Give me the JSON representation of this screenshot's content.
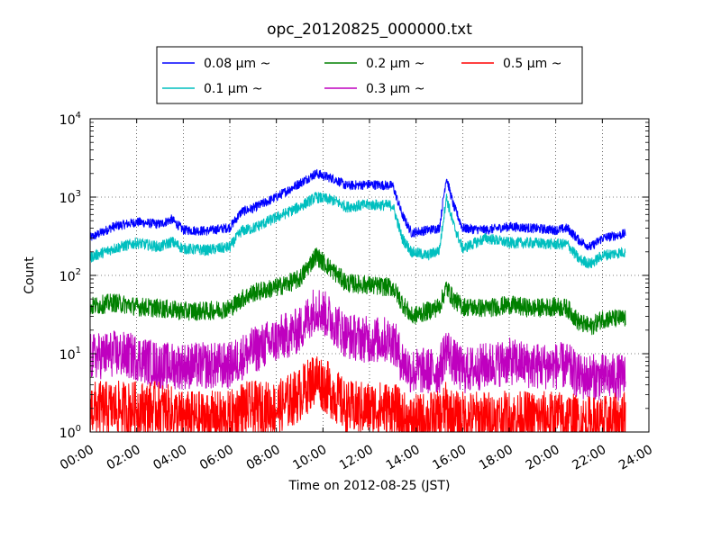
{
  "chart_data": {
    "type": "line",
    "title": "opc_20120825_000000.txt",
    "xlabel": "Time on 2012-08-25 (JST)",
    "ylabel": "Count",
    "x_tick_labels": [
      "00:00",
      "02:00",
      "04:00",
      "06:00",
      "08:00",
      "10:00",
      "12:00",
      "14:00",
      "16:00",
      "18:00",
      "20:00",
      "22:00",
      "24:00"
    ],
    "x_range_hours": [
      0,
      24
    ],
    "y_scale": "log",
    "y_range": [
      1,
      10000
    ],
    "y_tick_labels": [
      {
        "base": "10",
        "exp": "0"
      },
      {
        "base": "10",
        "exp": "1"
      },
      {
        "base": "10",
        "exp": "2"
      },
      {
        "base": "10",
        "exp": "3"
      },
      {
        "base": "10",
        "exp": "4"
      }
    ],
    "grid": "dotted",
    "legend_placement": "above plot, centered",
    "series": [
      {
        "name": "0.08 μm ~",
        "color": "#0000ff",
        "points": [
          [
            0,
            300
          ],
          [
            1,
            420
          ],
          [
            2,
            480
          ],
          [
            3,
            450
          ],
          [
            3.5,
            520
          ],
          [
            4,
            380
          ],
          [
            5,
            370
          ],
          [
            6,
            410
          ],
          [
            6.5,
            650
          ],
          [
            7,
            720
          ],
          [
            8,
            1000
          ],
          [
            9,
            1500
          ],
          [
            9.7,
            2000
          ],
          [
            10.5,
            1700
          ],
          [
            11,
            1400
          ],
          [
            12,
            1450
          ],
          [
            13,
            1400
          ],
          [
            13.4,
            600
          ],
          [
            13.8,
            350
          ],
          [
            14.5,
            380
          ],
          [
            15,
            400
          ],
          [
            15.3,
            1800
          ],
          [
            15.6,
            800
          ],
          [
            16,
            400
          ],
          [
            17,
            380
          ],
          [
            18,
            420
          ],
          [
            19,
            400
          ],
          [
            20,
            380
          ],
          [
            20.5,
            400
          ],
          [
            21,
            280
          ],
          [
            21.5,
            230
          ],
          [
            22,
            300
          ],
          [
            23,
            340
          ]
        ]
      },
      {
        "name": "0.1 μm ~",
        "color": "#00bfbf",
        "points": [
          [
            0,
            170
          ],
          [
            1,
            220
          ],
          [
            2,
            260
          ],
          [
            3,
            230
          ],
          [
            3.5,
            270
          ],
          [
            4,
            220
          ],
          [
            5,
            210
          ],
          [
            6,
            230
          ],
          [
            6.5,
            370
          ],
          [
            7,
            400
          ],
          [
            8,
            550
          ],
          [
            9,
            750
          ],
          [
            9.7,
            1000
          ],
          [
            10.5,
            900
          ],
          [
            11,
            750
          ],
          [
            12,
            800
          ],
          [
            13,
            780
          ],
          [
            13.4,
            300
          ],
          [
            13.8,
            200
          ],
          [
            14.5,
            180
          ],
          [
            15,
            210
          ],
          [
            15.3,
            1000
          ],
          [
            15.6,
            450
          ],
          [
            16,
            220
          ],
          [
            17,
            300
          ],
          [
            18,
            260
          ],
          [
            19,
            260
          ],
          [
            20,
            250
          ],
          [
            20.5,
            250
          ],
          [
            21,
            160
          ],
          [
            21.5,
            140
          ],
          [
            22,
            180
          ],
          [
            23,
            200
          ]
        ]
      },
      {
        "name": "0.2 μm ~",
        "color": "#008000",
        "points": [
          [
            0,
            40
          ],
          [
            1,
            45
          ],
          [
            2,
            40
          ],
          [
            3,
            38
          ],
          [
            4,
            35
          ],
          [
            5,
            35
          ],
          [
            6,
            38
          ],
          [
            6.5,
            50
          ],
          [
            7,
            60
          ],
          [
            8,
            70
          ],
          [
            9,
            90
          ],
          [
            9.7,
            180
          ],
          [
            10.5,
            110
          ],
          [
            11,
            80
          ],
          [
            12,
            75
          ],
          [
            13,
            70
          ],
          [
            13.4,
            45
          ],
          [
            13.8,
            30
          ],
          [
            14.5,
            35
          ],
          [
            15,
            40
          ],
          [
            15.3,
            70
          ],
          [
            15.6,
            50
          ],
          [
            16,
            40
          ],
          [
            17,
            38
          ],
          [
            18,
            42
          ],
          [
            19,
            38
          ],
          [
            20,
            40
          ],
          [
            20.5,
            38
          ],
          [
            21,
            25
          ],
          [
            21.5,
            22
          ],
          [
            22,
            28
          ],
          [
            23,
            28
          ]
        ]
      },
      {
        "name": "0.3 μm ~",
        "color": "#bf00bf",
        "points": [
          [
            0,
            9
          ],
          [
            1,
            10
          ],
          [
            2,
            9
          ],
          [
            3,
            7
          ],
          [
            4,
            7
          ],
          [
            5,
            7
          ],
          [
            6,
            7
          ],
          [
            6.5,
            9
          ],
          [
            7,
            11
          ],
          [
            8,
            15
          ],
          [
            9,
            20
          ],
          [
            9.7,
            40
          ],
          [
            10.5,
            25
          ],
          [
            11,
            17
          ],
          [
            12,
            15
          ],
          [
            13,
            15
          ],
          [
            13.4,
            8
          ],
          [
            13.8,
            6
          ],
          [
            14.5,
            6
          ],
          [
            15,
            6
          ],
          [
            15.3,
            12
          ],
          [
            15.6,
            8
          ],
          [
            16,
            6
          ],
          [
            17,
            7
          ],
          [
            18,
            8
          ],
          [
            19,
            7
          ],
          [
            20,
            7
          ],
          [
            20.5,
            7
          ],
          [
            21,
            5
          ],
          [
            21.5,
            5
          ],
          [
            22,
            5
          ],
          [
            23,
            5
          ]
        ]
      },
      {
        "name": "0.5 μm ~",
        "color": "#ff0000",
        "points": [
          [
            0,
            2
          ],
          [
            1,
            2
          ],
          [
            2,
            2
          ],
          [
            3,
            2
          ],
          [
            4,
            1.5
          ],
          [
            5,
            1.5
          ],
          [
            6,
            1.5
          ],
          [
            6.5,
            2
          ],
          [
            7,
            2
          ],
          [
            8,
            2
          ],
          [
            9,
            3
          ],
          [
            9.7,
            5
          ],
          [
            10.5,
            3
          ],
          [
            11,
            2
          ],
          [
            12,
            2
          ],
          [
            13,
            2
          ],
          [
            13.4,
            1.5
          ],
          [
            13.8,
            1.3
          ],
          [
            14.5,
            1.5
          ],
          [
            15,
            1.5
          ],
          [
            15.3,
            2
          ],
          [
            15.6,
            1.5
          ],
          [
            16,
            1.5
          ],
          [
            17,
            1.5
          ],
          [
            18,
            1.5
          ],
          [
            19,
            1.5
          ],
          [
            20,
            1.5
          ],
          [
            20.5,
            1.5
          ],
          [
            21,
            1.3
          ],
          [
            21.5,
            1.3
          ],
          [
            22,
            1.3
          ],
          [
            23,
            1.5
          ]
        ]
      }
    ]
  }
}
